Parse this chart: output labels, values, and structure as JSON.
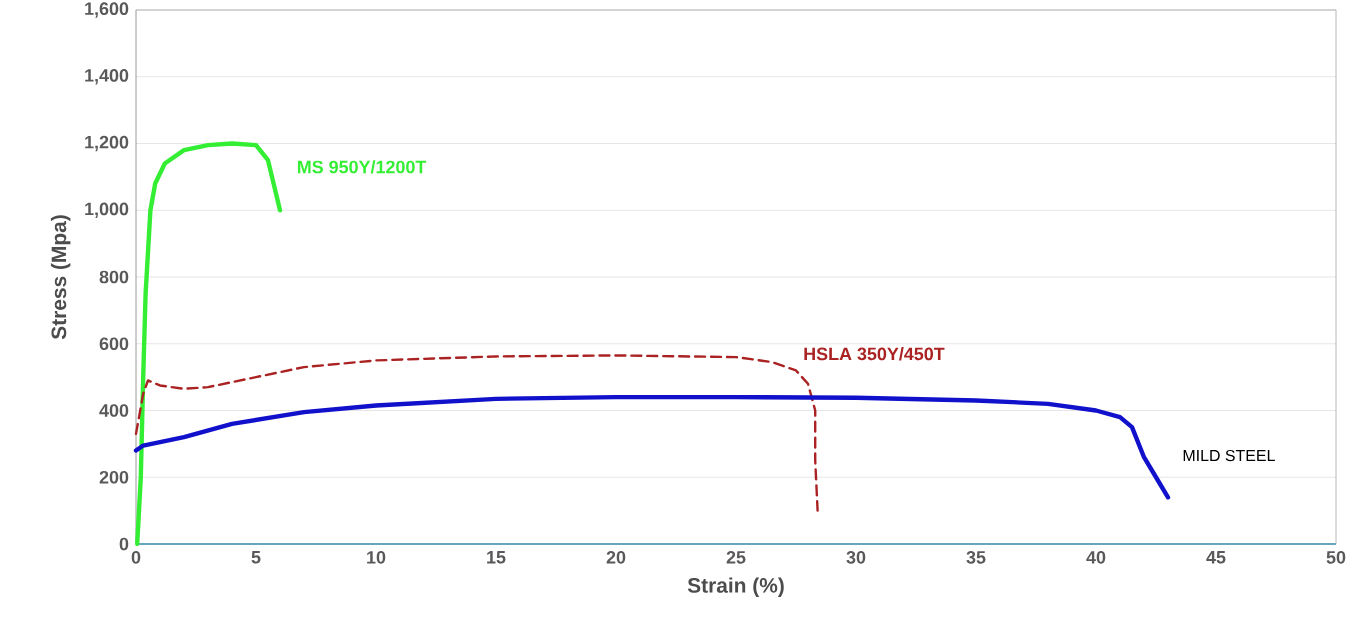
{
  "chart_data": {
    "type": "line",
    "xlabel": "Strain (%)",
    "ylabel": "Stress (Mpa)",
    "xlim": [
      0,
      50
    ],
    "ylim": [
      0,
      1600
    ],
    "xticks": [
      0,
      5,
      10,
      15,
      20,
      25,
      30,
      35,
      40,
      45,
      50
    ],
    "yticks": [
      0,
      200,
      400,
      600,
      800,
      {
        "value": 1000,
        "label": "1,000"
      },
      {
        "value": 1200,
        "label": "1,200"
      },
      {
        "value": 1400,
        "label": "1,400"
      },
      {
        "value": 1600,
        "label": "1,600"
      }
    ],
    "grid": "y",
    "series": [
      {
        "name": "MS 950Y/1200T",
        "color": "#33ee33",
        "line_style": "solid",
        "x": [
          0.05,
          0.2,
          0.3,
          0.4,
          0.6,
          0.8,
          1.2,
          2,
          3,
          4,
          5,
          5.5,
          6
        ],
        "values": [
          0,
          200,
          500,
          750,
          1000,
          1080,
          1140,
          1180,
          1195,
          1200,
          1195,
          1150,
          1000
        ]
      },
      {
        "name": "HSLA 350Y/450T",
        "color": "#aa2222",
        "line_style": "dashed",
        "x": [
          0,
          0.3,
          0.5,
          1,
          2,
          3,
          5,
          7,
          10,
          15,
          20,
          25,
          26.5,
          27.5,
          28,
          28.3,
          28.3,
          28.4
        ],
        "values": [
          330,
          450,
          490,
          475,
          465,
          470,
          500,
          530,
          550,
          562,
          565,
          560,
          545,
          520,
          480,
          400,
          250,
          100
        ]
      },
      {
        "name": "MILD STEEL",
        "color": "#1111cc",
        "line_style": "solid",
        "x": [
          0,
          0.3,
          2,
          4,
          7,
          10,
          15,
          20,
          25,
          30,
          35,
          38,
          40,
          41,
          41.5,
          42,
          42.5,
          43
        ],
        "values": [
          280,
          295,
          320,
          360,
          395,
          415,
          435,
          440,
          440,
          438,
          430,
          420,
          400,
          380,
          350,
          260,
          200,
          140
        ]
      }
    ]
  }
}
